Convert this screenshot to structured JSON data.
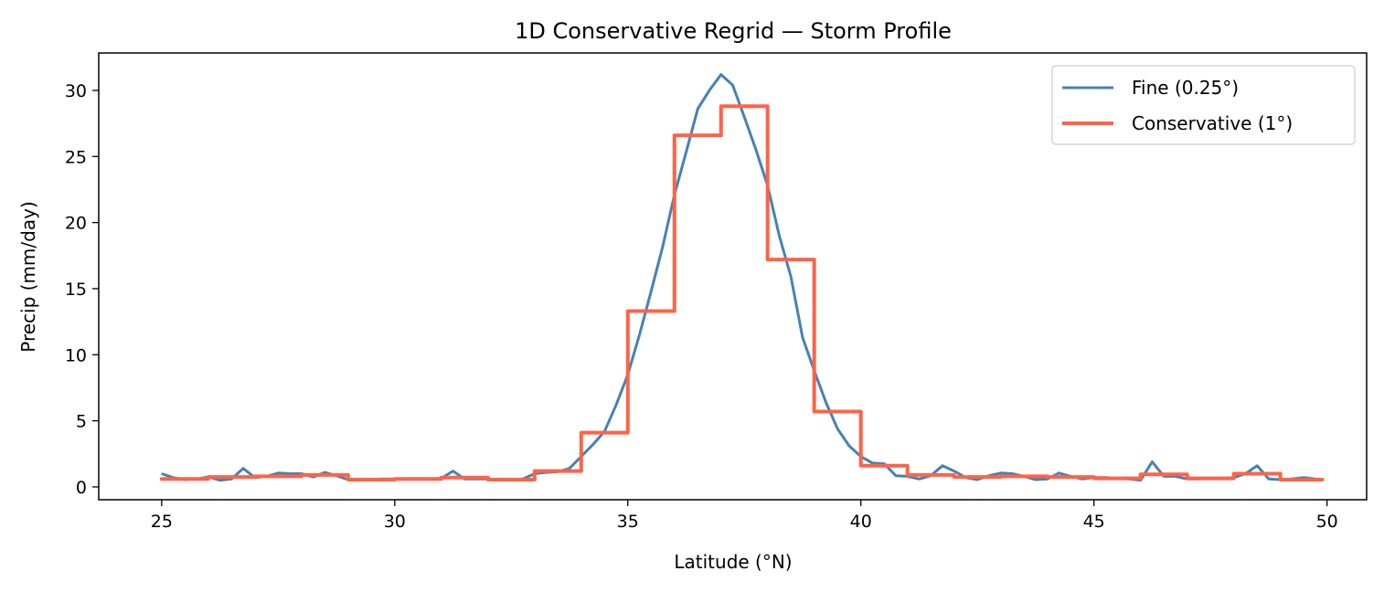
{
  "chart_data": {
    "type": "line",
    "title": "1D Conservative Regrid — Storm Profile",
    "xlabel": "Latitude (°N)",
    "ylabel": "Precip (mm/day)",
    "xlim": [
      23.65,
      50.85
    ],
    "ylim": [
      -0.97,
      32.83
    ],
    "xticks": [
      25,
      30,
      35,
      40,
      45,
      50
    ],
    "yticks": [
      0,
      5,
      10,
      15,
      20,
      25,
      30
    ],
    "grid": false,
    "legend_position": "top-right",
    "series": [
      {
        "name": "Fine (0.25°)",
        "kind": "line",
        "color": "#4682b4",
        "x_start": 25,
        "x_step": 0.25,
        "values": [
          1.0,
          0.7,
          0.55,
          0.6,
          0.75,
          0.5,
          0.6,
          1.4,
          0.7,
          0.8,
          1.05,
          1.0,
          1.0,
          0.75,
          1.1,
          0.85,
          0.55,
          0.5,
          0.55,
          0.6,
          0.6,
          0.6,
          0.6,
          0.6,
          0.65,
          1.2,
          0.6,
          0.6,
          0.6,
          0.55,
          0.55,
          0.6,
          1.0,
          1.1,
          1.15,
          1.4,
          2.3,
          3.2,
          4.2,
          6.2,
          8.5,
          11.5,
          14.8,
          18.2,
          22.1,
          25.3,
          28.6,
          30.0,
          31.2,
          30.4,
          28.0,
          25.5,
          22.8,
          19.0,
          15.9,
          11.3,
          8.8,
          6.4,
          4.4,
          3.1,
          2.3,
          1.8,
          1.75,
          0.85,
          0.8,
          0.6,
          0.85,
          1.6,
          1.2,
          0.7,
          0.55,
          0.85,
          1.05,
          1.0,
          0.8,
          0.55,
          0.6,
          1.05,
          0.8,
          0.6,
          0.7,
          0.7,
          0.65,
          0.6,
          0.5,
          1.9,
          0.8,
          0.8,
          0.6,
          0.6,
          0.65,
          0.65,
          0.7,
          1.0,
          1.6,
          0.6,
          0.55,
          0.6,
          0.7,
          0.6
        ]
      },
      {
        "name": "Conservative (1°)",
        "kind": "step",
        "color": "#ff6347",
        "bin_edges_start": 25,
        "bin_width": 1,
        "values": [
          0.6,
          0.75,
          0.8,
          0.9,
          0.55,
          0.6,
          0.7,
          0.55,
          1.2,
          4.1,
          13.3,
          26.6,
          28.8,
          17.2,
          5.7,
          1.6,
          0.9,
          0.75,
          0.8,
          0.75,
          0.65,
          0.95,
          0.65,
          1.0,
          0.55
        ]
      }
    ]
  }
}
